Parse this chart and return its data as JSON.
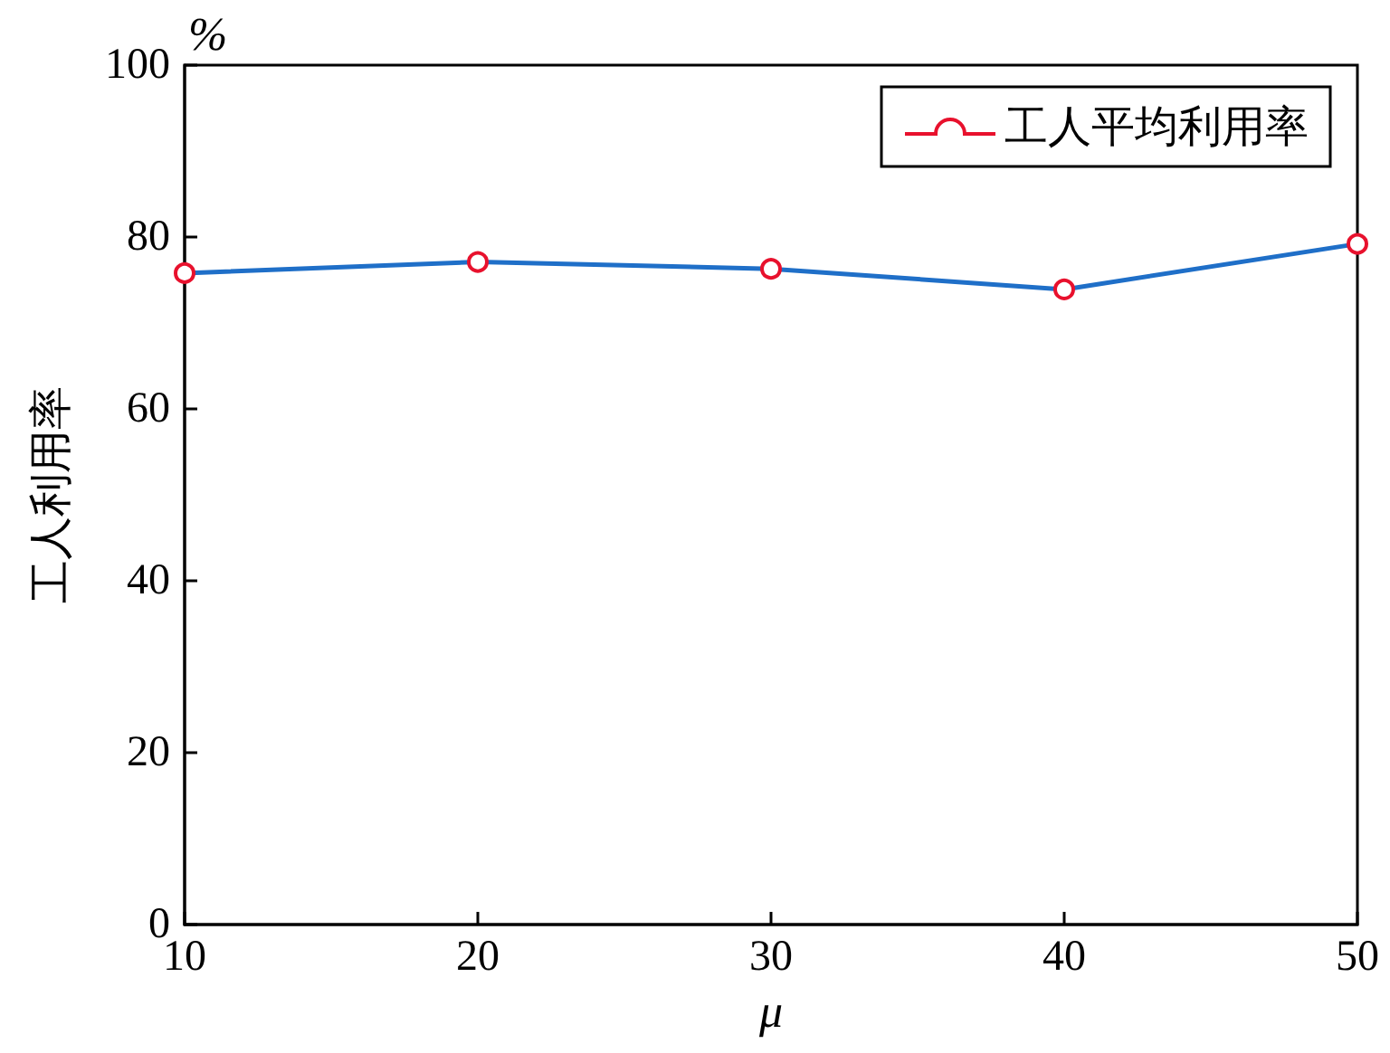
{
  "chart_data": {
    "type": "line",
    "xlabel": "μ",
    "ylabel": "工人利用率",
    "annotations": [
      "%"
    ],
    "x": [
      10,
      20,
      30,
      40,
      50
    ],
    "series": [
      {
        "name": "工人平均利用率",
        "color": "#1f6fc8",
        "values": [
          75.8,
          77.1,
          76.3,
          73.9,
          79.2
        ]
      }
    ],
    "xlim": [
      10,
      50
    ],
    "xticks": [
      10,
      20,
      30,
      40,
      50
    ],
    "ylim": [
      0,
      100
    ],
    "yticks": [
      0,
      20,
      40,
      60,
      80,
      100
    ],
    "grid": false,
    "legend": "top right",
    "marker": "circle",
    "line_style": "solid"
  }
}
